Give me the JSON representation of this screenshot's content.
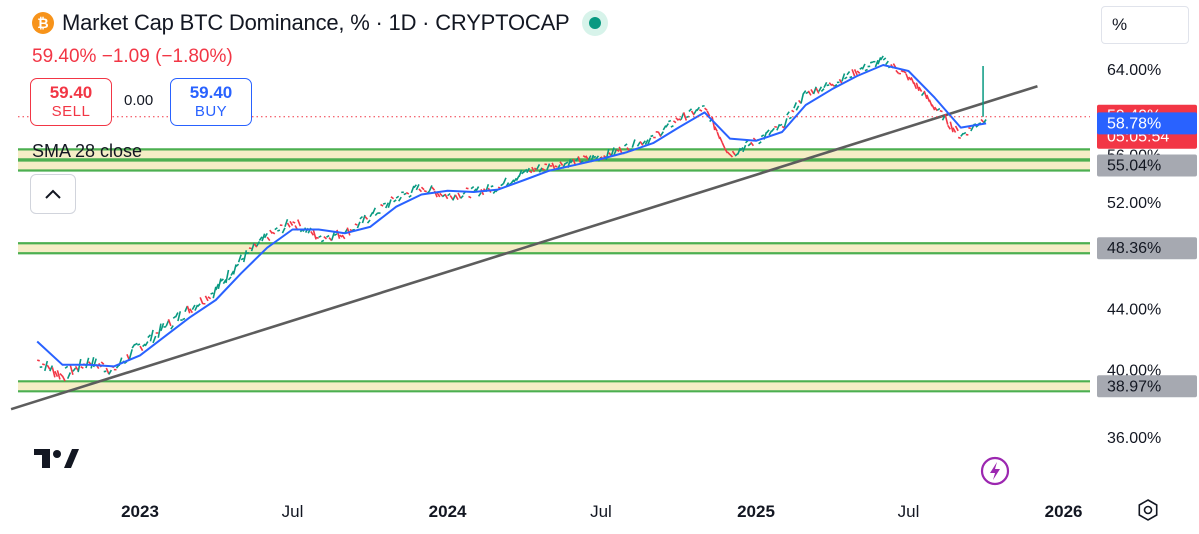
{
  "header": {
    "coin_symbol": "₿",
    "title": "Market Cap BTC Dominance, % · 1D · CRYPTOCAP",
    "change": "59.40%  −1.09 (−1.80%)",
    "sell_price": "59.40",
    "sell_label": "SELL",
    "spread": "0.00",
    "buy_price": "59.40",
    "buy_label": "BUY",
    "indicator_name": "SMA 28 close",
    "scale_mode": "%"
  },
  "colors": {
    "up": "#089981",
    "down": "#f23645",
    "sma": "#2962ff",
    "support": "#4caf50",
    "trendline": "#5d5d5d"
  },
  "icons": [
    "bitcoin-icon",
    "market-status-icon",
    "chevron-up-icon",
    "tradingview-logo-icon",
    "lightning-icon",
    "settings-icon"
  ],
  "chart_data": {
    "type": "line",
    "y_scale": "log",
    "grid": false,
    "x_tick_labels": [
      "2023",
      "Jul",
      "2024",
      "Jul",
      "2025",
      "Jul",
      "2026"
    ],
    "y_ticks": [
      "64.00%",
      "60.00%",
      "56.00%",
      "52.00%",
      "48.00%",
      "44.00%",
      "40.00%",
      "36.00%"
    ],
    "series": [
      {
        "name": "",
        "kind": "close",
        "x": [
          "2022-09-01",
          "2022-10-01",
          "2022-11-01",
          "2022-12-01",
          "2023-01-01",
          "2023-02-01",
          "2023-03-01",
          "2023-04-01",
          "2023-05-01",
          "2023-06-01",
          "2023-07-01",
          "2023-08-01",
          "2023-09-01",
          "2023-10-01",
          "2023-11-01",
          "2023-12-01",
          "2024-01-01",
          "2024-02-01",
          "2024-03-01",
          "2024-04-01",
          "2024-05-01",
          "2024-06-01",
          "2024-07-01",
          "2024-08-01",
          "2024-09-01",
          "2024-10-01",
          "2024-11-01",
          "2024-12-01",
          "2025-01-01",
          "2025-02-01",
          "2025-03-01",
          "2025-04-01",
          "2025-05-01",
          "2025-06-01",
          "2025-07-01",
          "2025-08-01",
          "2025-09-01",
          "2025-10-01"
        ],
        "values": [
          40.6,
          39.6,
          40.5,
          40.0,
          41.5,
          42.8,
          44.0,
          45.3,
          47.5,
          49.2,
          50.4,
          49.2,
          49.5,
          50.8,
          52.3,
          53.2,
          52.5,
          52.8,
          53.2,
          54.5,
          55.0,
          55.4,
          55.8,
          56.6,
          57.5,
          59.2,
          60.2,
          56.0,
          57.2,
          58.5,
          61.6,
          62.5,
          63.8,
          64.9,
          63.2,
          60.3,
          57.6,
          59.4
        ]
      },
      {
        "name": "SMA 28 close",
        "x": [
          "2022-09-01",
          "2022-10-01",
          "2022-11-01",
          "2022-12-01",
          "2023-01-01",
          "2023-02-01",
          "2023-03-01",
          "2023-04-01",
          "2023-05-01",
          "2023-06-01",
          "2023-07-01",
          "2023-08-01",
          "2023-09-01",
          "2023-10-01",
          "2023-11-01",
          "2023-12-01",
          "2024-01-01",
          "2024-02-01",
          "2024-03-01",
          "2024-04-01",
          "2024-05-01",
          "2024-06-01",
          "2024-07-01",
          "2024-08-01",
          "2024-09-01",
          "2024-10-01",
          "2024-11-01",
          "2024-12-01",
          "2025-01-01",
          "2025-02-01",
          "2025-03-01",
          "2025-04-01",
          "2025-05-01",
          "2025-06-01",
          "2025-07-01",
          "2025-08-01",
          "2025-09-01",
          "2025-10-01"
        ],
        "values": [
          41.8,
          40.3,
          40.3,
          40.2,
          40.9,
          42.2,
          43.4,
          44.6,
          46.5,
          48.4,
          49.8,
          49.8,
          49.5,
          50.0,
          51.6,
          52.6,
          52.9,
          52.8,
          53.0,
          53.8,
          54.6,
          55.1,
          55.6,
          56.2,
          57.0,
          58.4,
          59.8,
          57.4,
          57.2,
          58.0,
          60.5,
          62.0,
          63.3,
          64.4,
          63.8,
          61.2,
          58.4,
          58.78
        ]
      },
      {
        "name": "",
        "kind": "trendline",
        "x": [
          "2022-08-01",
          "2025-12-01"
        ],
        "values": [
          37.6,
          62.3
        ]
      }
    ],
    "horizontal_levels": [
      56.0,
      55.04,
      48.36,
      38.97
    ],
    "price_labels": [
      {
        "text": "59.40%",
        "sub": "05:05:54",
        "value": 59.4,
        "color": "#f23645"
      },
      {
        "text": "58.78%",
        "value": 58.78,
        "color": "#2962ff"
      },
      {
        "text": "55.04%",
        "value": 55.04,
        "color": "#a6a9b1"
      },
      {
        "text": "48.36%",
        "value": 48.36,
        "color": "#a6a9b1"
      },
      {
        "text": "38.97%",
        "value": 38.97,
        "color": "#a6a9b1"
      }
    ],
    "last_value": 59.4
  }
}
